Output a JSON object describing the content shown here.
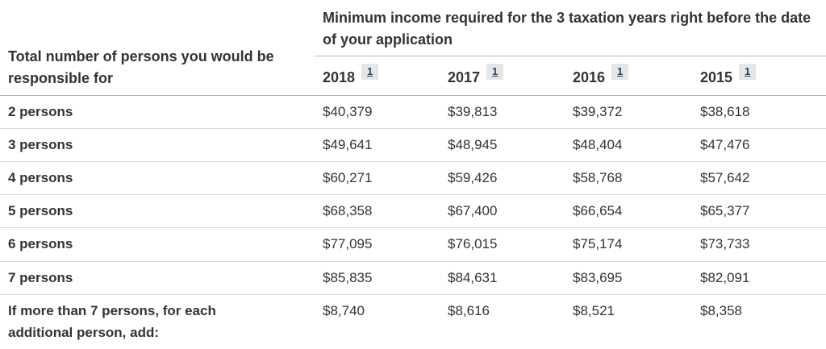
{
  "table": {
    "row_header_label": "Total number of persons you would be responsible for",
    "group_header": "Minimum income required for the 3 taxation years right before the date of your application",
    "footnote_marker": "1",
    "years": [
      "2018",
      "2017",
      "2016",
      "2015"
    ],
    "rows": [
      {
        "label": "2 persons",
        "values": [
          "$40,379",
          "$39,813",
          "$39,372",
          "$38,618"
        ]
      },
      {
        "label": "3 persons",
        "values": [
          "$49,641",
          "$48,945",
          "$48,404",
          "$47,476"
        ]
      },
      {
        "label": "4 persons",
        "values": [
          "$60,271",
          "$59,426",
          "$58,768",
          "$57,642"
        ]
      },
      {
        "label": "5 persons",
        "values": [
          "$68,358",
          "$67,400",
          "$66,654",
          "$65,377"
        ]
      },
      {
        "label": "6 persons",
        "values": [
          "$77,095",
          "$76,015",
          "$75,174",
          "$73,733"
        ]
      },
      {
        "label": "7 persons",
        "values": [
          "$85,835",
          "$84,631",
          "$83,695",
          "$82,091"
        ]
      },
      {
        "label": "If more than 7 persons, for each additional person, add:",
        "values": [
          "$8,740",
          "$8,616",
          "$8,521",
          "$8,358"
        ]
      }
    ],
    "colors": {
      "text": "#333333",
      "header_rule": "#b5b5b5",
      "row_rule": "#d9d9d9",
      "footnote_bg": "#e6e6e6",
      "footnote_link": "#284162"
    }
  }
}
